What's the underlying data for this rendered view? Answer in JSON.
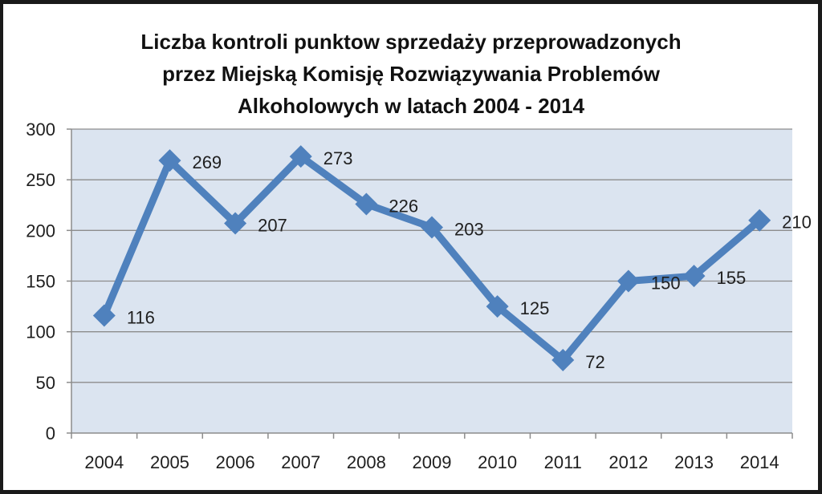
{
  "chart_data": {
    "type": "line",
    "title_lines": [
      "Liczba  kontroli punktow sprzedaży przeprowadzonych",
      "przez Miejską Komisję Rozwiązywania Problemów",
      "Alkoholowych  w latach 2004 - 2014"
    ],
    "categories": [
      "2004",
      "2005",
      "2006",
      "2007",
      "2008",
      "2009",
      "2010",
      "2011",
      "2012",
      "2013",
      "2014"
    ],
    "series": [
      {
        "name": "Liczba kontroli",
        "values": [
          116,
          269,
          207,
          273,
          226,
          203,
          125,
          72,
          150,
          155,
          210
        ],
        "color": "#4f81bd"
      }
    ],
    "y_ticks": [
      0,
      50,
      100,
      150,
      200,
      250,
      300
    ],
    "ylim": [
      0,
      300
    ],
    "xlabel": "",
    "ylabel": "",
    "grid": true,
    "legend": "none",
    "plot_background": "#dbe4f0",
    "gridline_color": "#8c8c8c",
    "data_labels": true
  }
}
